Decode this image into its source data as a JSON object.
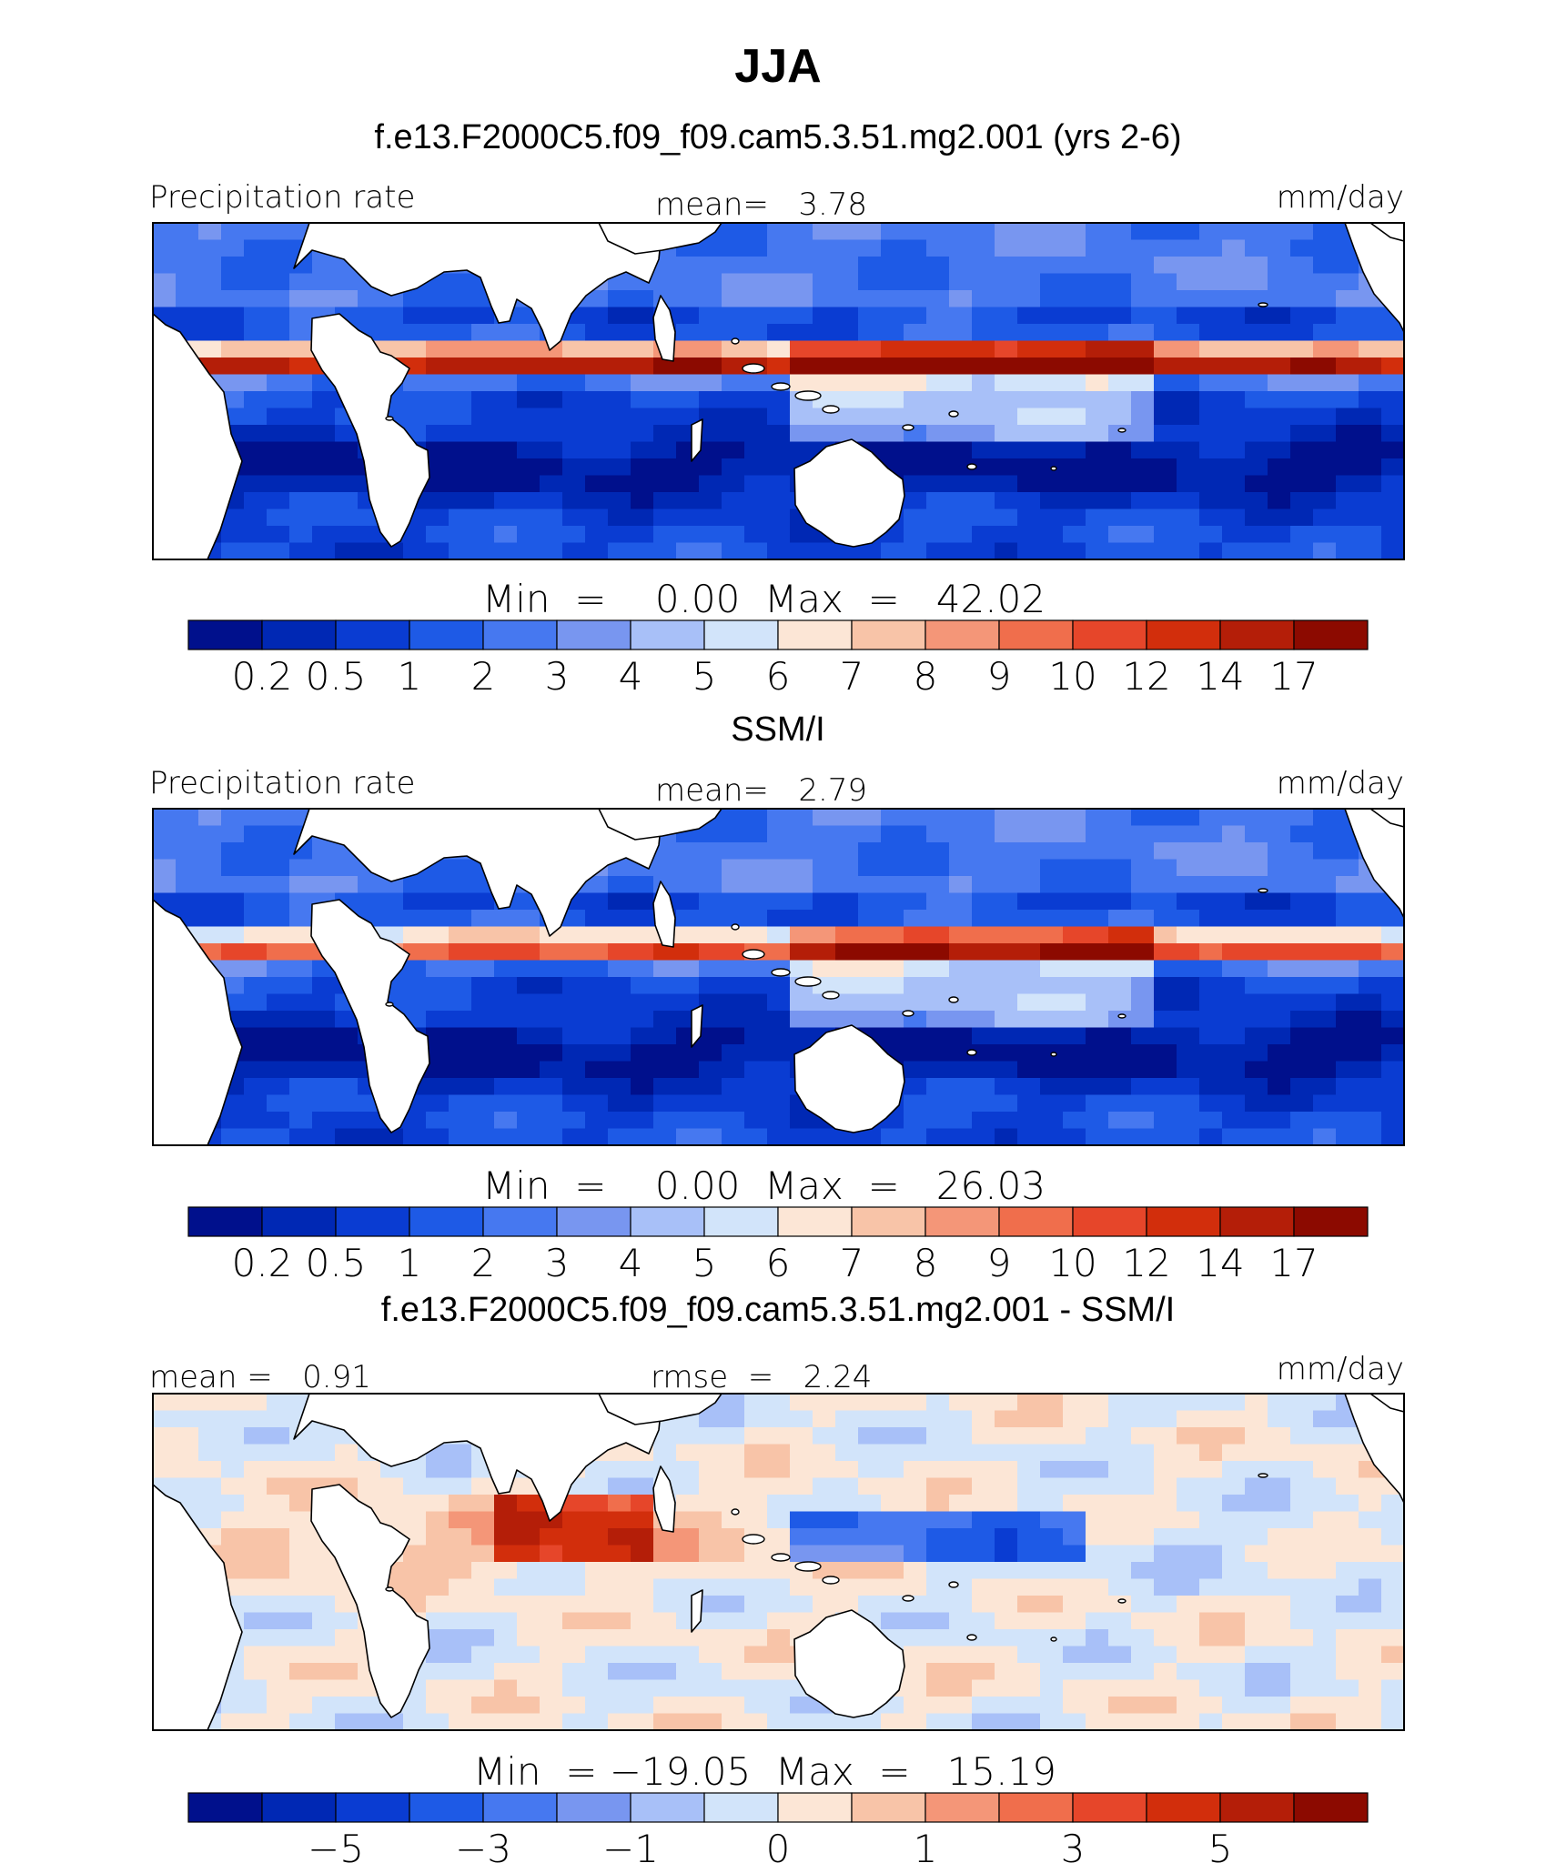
{
  "main_title": "JJA",
  "colors": {
    "main_levels": [
      "#00108c",
      "#0028b4",
      "#0a3cd2",
      "#1e5ae6",
      "#4678f0",
      "#7896f0",
      "#a8c0f8",
      "#d2e4fa",
      "#fce6d6",
      "#f8c4a8",
      "#f49678",
      "#f06e4c",
      "#e6462a",
      "#d22e0c",
      "#b41e08",
      "#8c0a00"
    ],
    "diff_levels": [
      "#00108c",
      "#0028b4",
      "#0a3cd2",
      "#1e5ae6",
      "#4678f0",
      "#7896f0",
      "#a8c0f8",
      "#d2e4fa",
      "#fce6d6",
      "#f8c4a8",
      "#f49678",
      "#f06e4c",
      "#e6462a",
      "#d22e0c",
      "#b41e08",
      "#8c0a00"
    ],
    "land": "#ffffff",
    "coast": "#000000"
  },
  "chart_data": [
    {
      "type": "heatmap",
      "title": "f.e13.F2000C5.f09_f09.cam5.3.51.mg2.001 (yrs 2-6)",
      "left_label": "Precipitation rate",
      "center_label": "mean=   3.78",
      "right_label": "mm/day",
      "stats": {
        "mean": 3.78,
        "min": 0.0,
        "max": 42.02
      },
      "minmax_text": "Min  =    0.00  Max  =   42.02",
      "colorbar_levels": [
        "0.2",
        "0.5",
        "1",
        "2",
        "3",
        "4",
        "5",
        "6",
        "7",
        "8",
        "9",
        "10",
        "12",
        "14",
        "17"
      ],
      "units": "mm/day"
    },
    {
      "type": "heatmap",
      "title": "SSM/I",
      "left_label": "Precipitation rate",
      "center_label": "mean=   2.79",
      "right_label": "mm/day",
      "stats": {
        "mean": 2.79,
        "min": 0.0,
        "max": 26.03
      },
      "minmax_text": "Min  =    0.00  Max  =   26.03",
      "colorbar_levels": [
        "0.2",
        "0.5",
        "1",
        "2",
        "3",
        "4",
        "5",
        "6",
        "7",
        "8",
        "9",
        "10",
        "12",
        "14",
        "17"
      ],
      "units": "mm/day"
    },
    {
      "type": "heatmap",
      "title": "f.e13.F2000C5.f09_f09.cam5.3.51.mg2.001 - SSM/I",
      "left_label": "mean =   0.91",
      "center_label": "rmse  =   2.24",
      "right_label": "mm/day",
      "stats": {
        "mean": 0.91,
        "rmse": 2.24,
        "min": -19.05,
        "max": 15.19
      },
      "minmax_text": "Min  = −19.05  Max  =   15.19",
      "colorbar_levels": [
        "−5",
        "−3",
        "−1",
        "0",
        "1",
        "3",
        "5"
      ],
      "units": "mm/day"
    }
  ]
}
